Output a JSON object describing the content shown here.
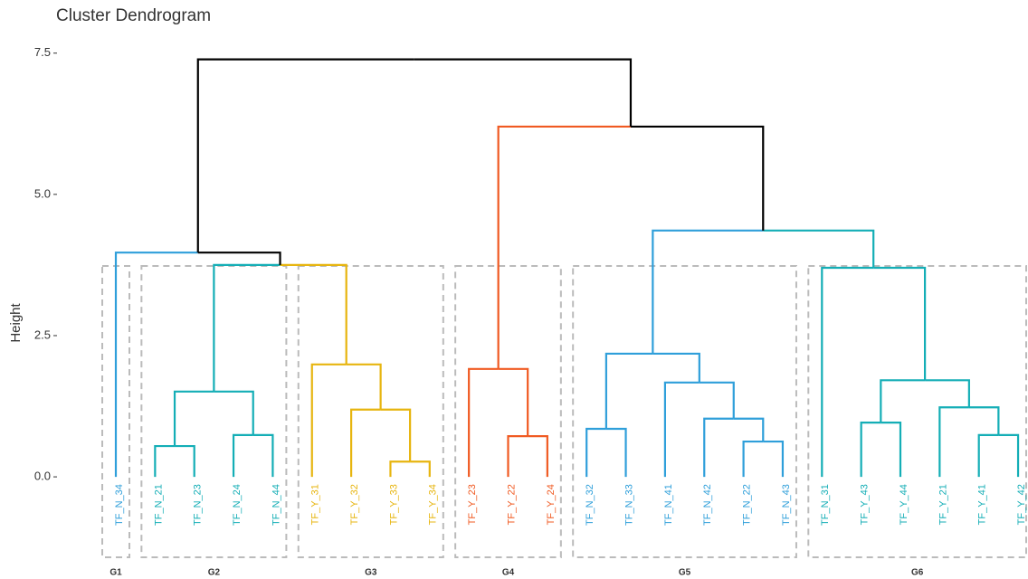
{
  "chart_data": {
    "type": "dendrogram",
    "title": "Cluster Dendrogram",
    "y_label": "Height",
    "ylim": [
      -1.6,
      7.8
    ],
    "yticks": [
      {
        "value": 0,
        "label": "0.0"
      },
      {
        "value": 2.5,
        "label": "2.5"
      },
      {
        "value": 5,
        "label": "5.0"
      },
      {
        "value": 7.5,
        "label": "7.5"
      }
    ],
    "tree": {
      "height": 7.39,
      "children": [
        {
          "height": 3.97,
          "color": "#000000",
          "children": [
            {
              "label": "TF_N_34",
              "height": 0,
              "color": "#2f9fda"
            },
            {
              "height": 3.75,
              "color": "#000000",
              "children": [
                {
                  "height": 1.51,
                  "color": "#14aeb6",
                  "children": [
                    {
                      "height": 0.545,
                      "color": "#14aeb6",
                      "children": [
                        {
                          "label": "TF_N_21",
                          "height": 0,
                          "color": "#14aeb6"
                        },
                        {
                          "label": "TF_N_23",
                          "height": 0,
                          "color": "#14aeb6"
                        }
                      ]
                    },
                    {
                      "height": 0.74,
                      "color": "#14aeb6",
                      "children": [
                        {
                          "label": "TF_N_24",
                          "height": 0,
                          "color": "#14aeb6"
                        },
                        {
                          "label": "TF_N_44",
                          "height": 0,
                          "color": "#14aeb6"
                        }
                      ]
                    }
                  ]
                },
                {
                  "height": 1.99,
                  "color": "#e7b50f",
                  "children": [
                    {
                      "label": "TF_Y_31",
                      "height": 0,
                      "color": "#e7b50f"
                    },
                    {
                      "height": 1.19,
                      "color": "#e7b50f",
                      "children": [
                        {
                          "label": "TF_Y_32",
                          "height": 0,
                          "color": "#e7b50f"
                        },
                        {
                          "height": 0.27,
                          "color": "#e7b50f",
                          "children": [
                            {
                              "label": "TF_Y_33",
                              "height": 0,
                              "color": "#e7b50f"
                            },
                            {
                              "label": "TF_Y_34",
                              "height": 0,
                              "color": "#e7b50f"
                            }
                          ]
                        }
                      ]
                    }
                  ]
                }
              ]
            }
          ]
        },
        {
          "height": 6.2,
          "color": "#000000",
          "children": [
            {
              "height": 1.91,
              "color": "#f05a22",
              "children": [
                {
                  "label": "TF_Y_23",
                  "height": 0,
                  "color": "#f05a22"
                },
                {
                  "height": 0.72,
                  "color": "#f05a22",
                  "children": [
                    {
                      "label": "TF_Y_22",
                      "height": 0,
                      "color": "#f05a22"
                    },
                    {
                      "label": "TF_Y_24",
                      "height": 0,
                      "color": "#f05a22"
                    }
                  ]
                }
              ]
            },
            {
              "height": 4.36,
              "color": "#000000",
              "children": [
                {
                  "height": 2.18,
                  "color": "#2f9fda",
                  "children": [
                    {
                      "height": 0.85,
                      "color": "#2f9fda",
                      "children": [
                        {
                          "label": "TF_N_32",
                          "height": 0,
                          "color": "#2f9fda"
                        },
                        {
                          "label": "TF_N_33",
                          "height": 0,
                          "color": "#2f9fda"
                        }
                      ]
                    },
                    {
                      "height": 1.67,
                      "color": "#2f9fda",
                      "children": [
                        {
                          "label": "TF_N_41",
                          "height": 0,
                          "color": "#2f9fda"
                        },
                        {
                          "height": 1.03,
                          "color": "#2f9fda",
                          "children": [
                            {
                              "label": "TF_N_42",
                              "height": 0,
                              "color": "#2f9fda"
                            },
                            {
                              "height": 0.625,
                              "color": "#2f9fda",
                              "children": [
                                {
                                  "label": "TF_N_22",
                                  "height": 0,
                                  "color": "#2f9fda"
                                },
                                {
                                  "label": "TF_N_43",
                                  "height": 0,
                                  "color": "#2f9fda"
                                }
                              ]
                            }
                          ]
                        }
                      ]
                    }
                  ]
                },
                {
                  "height": 3.7,
                  "color": "#14aeb6",
                  "children": [
                    {
                      "label": "TF_N_31",
                      "height": 0,
                      "color": "#14aeb6"
                    },
                    {
                      "height": 1.71,
                      "color": "#14aeb6",
                      "children": [
                        {
                          "height": 0.96,
                          "color": "#14aeb6",
                          "children": [
                            {
                              "label": "TF_Y_43",
                              "height": 0,
                              "color": "#14aeb6"
                            },
                            {
                              "label": "TF_Y_44",
                              "height": 0,
                              "color": "#14aeb6"
                            }
                          ]
                        },
                        {
                          "height": 1.23,
                          "color": "#14aeb6",
                          "children": [
                            {
                              "label": "TF_Y_21",
                              "height": 0,
                              "color": "#14aeb6"
                            },
                            {
                              "height": 0.74,
                              "color": "#14aeb6",
                              "children": [
                                {
                                  "label": "TF_Y_41",
                                  "height": 0,
                                  "color": "#14aeb6"
                                },
                                {
                                  "label": "TF_Y_42",
                                  "height": 0,
                                  "color": "#14aeb6"
                                }
                              ]
                            }
                          ]
                        }
                      ]
                    }
                  ]
                }
              ]
            }
          ]
        }
      ]
    },
    "groups": [
      {
        "label": "G1",
        "leaves": [
          0,
          0
        ]
      },
      {
        "label": "G2",
        "leaves": [
          1,
          4
        ]
      },
      {
        "label": "G3",
        "leaves": [
          5,
          8
        ]
      },
      {
        "label": "G4",
        "leaves": [
          9,
          11
        ]
      },
      {
        "label": "G5",
        "leaves": [
          12,
          17
        ]
      },
      {
        "label": "G6",
        "leaves": [
          18,
          23
        ]
      }
    ]
  }
}
